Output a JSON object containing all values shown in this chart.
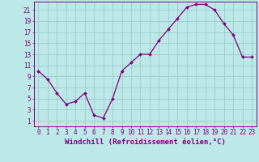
{
  "x": [
    0,
    1,
    2,
    3,
    4,
    5,
    6,
    7,
    8,
    9,
    10,
    11,
    12,
    13,
    14,
    15,
    16,
    17,
    18,
    19,
    20,
    21,
    22,
    23
  ],
  "y": [
    10,
    8.5,
    6,
    4,
    4.5,
    6,
    2,
    1.5,
    5,
    10,
    11.5,
    13,
    13,
    15.5,
    17.5,
    19.5,
    21.5,
    22,
    22,
    21,
    18.5,
    16.5,
    12.5,
    12.5
  ],
  "line_color": "#800080",
  "marker_color": "#800080",
  "bg_color": "#bde8e8",
  "grid_color": "#99cccc",
  "axis_color": "#800080",
  "tick_color": "#800080",
  "xlabel": "Windchill (Refroidissement éolien,°C)",
  "xlabel_color": "#800080",
  "ylim": [
    0,
    22.5
  ],
  "xlim": [
    -0.5,
    23.5
  ],
  "yticks": [
    1,
    3,
    5,
    7,
    9,
    11,
    13,
    15,
    17,
    19,
    21
  ],
  "xticks": [
    0,
    1,
    2,
    3,
    4,
    5,
    6,
    7,
    8,
    9,
    10,
    11,
    12,
    13,
    14,
    15,
    16,
    17,
    18,
    19,
    20,
    21,
    22,
    23
  ],
  "font_size": 5.5,
  "xlabel_font_size": 6.5
}
